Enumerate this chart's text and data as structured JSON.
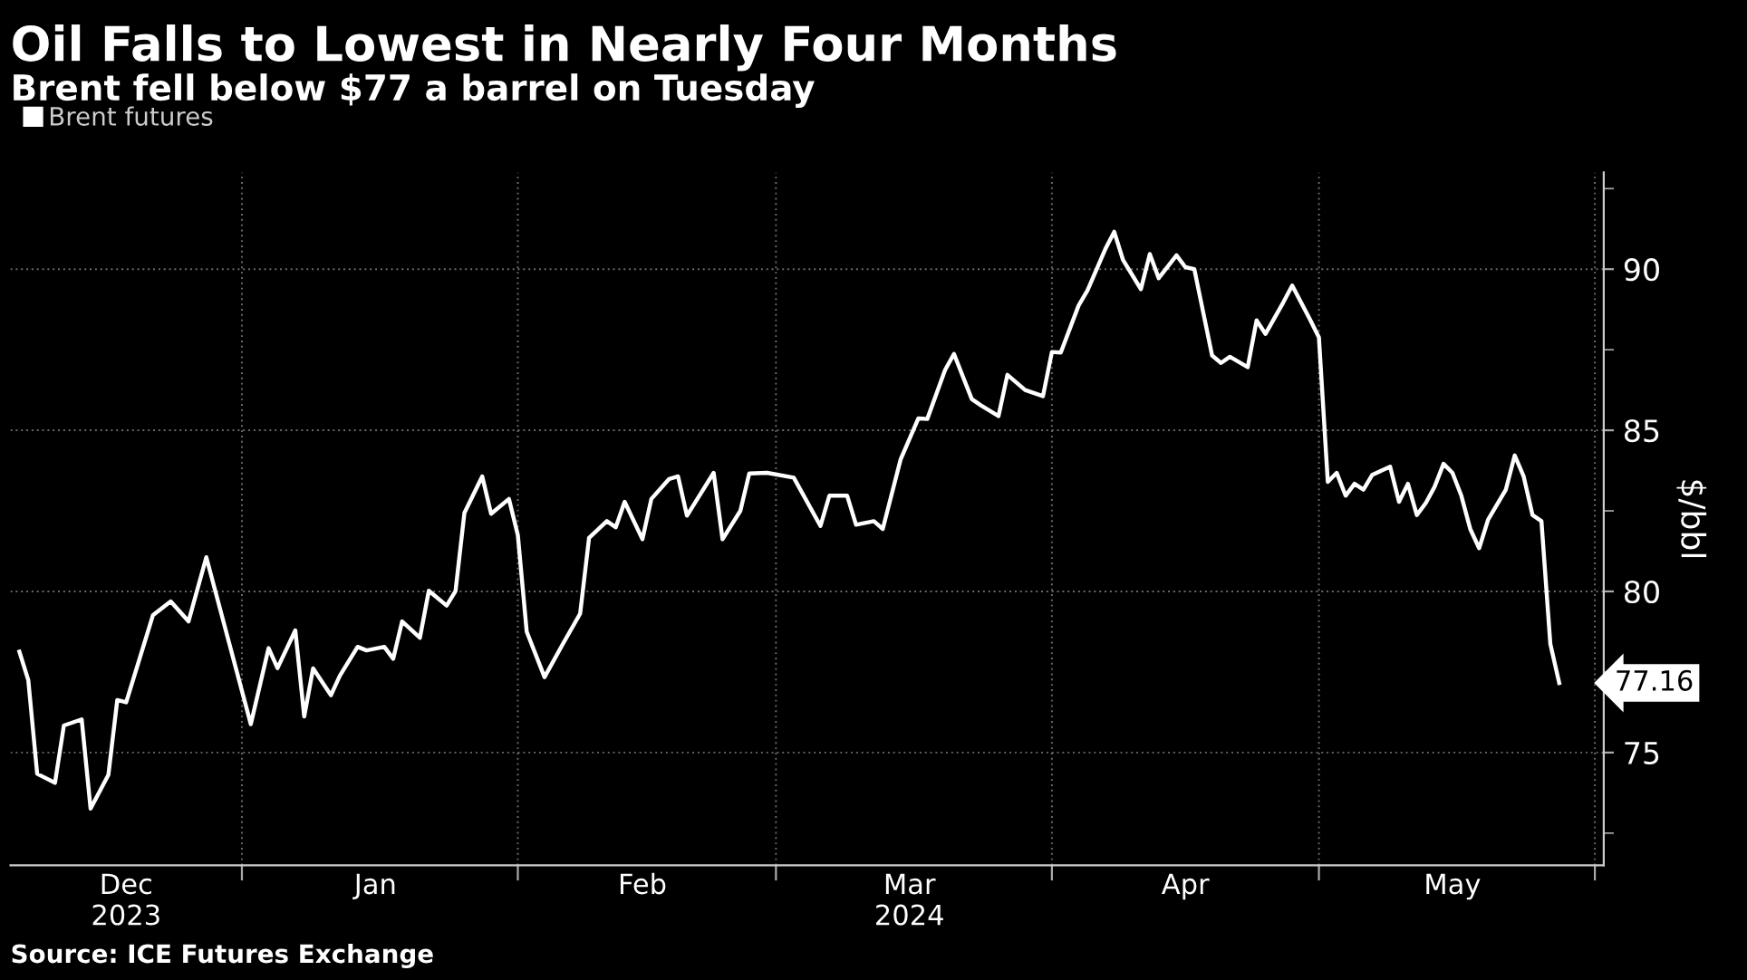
{
  "chart_data": {
    "type": "line",
    "title": "Oil Falls to Lowest in Nearly Four Months",
    "subtitle": "Brent fell below $77 a barrel on Tuesday",
    "ylabel": "$/bbl",
    "x": [
      "2023-12-07",
      "2023-12-08",
      "2023-12-09",
      "2023-12-11",
      "2023-12-12",
      "2023-12-14",
      "2023-12-15",
      "2023-12-17",
      "2023-12-18",
      "2023-12-19",
      "2023-12-22",
      "2023-12-24",
      "2023-12-26",
      "2023-12-28",
      "2024-01-02",
      "2024-01-04",
      "2024-01-05",
      "2024-01-07",
      "2024-01-08",
      "2024-01-09",
      "2024-01-11",
      "2024-01-12",
      "2024-01-14",
      "2024-01-15",
      "2024-01-17",
      "2024-01-18",
      "2024-01-19",
      "2024-01-21",
      "2024-01-22",
      "2024-01-24",
      "2024-01-25",
      "2024-01-26",
      "2024-01-28",
      "2024-01-29",
      "2024-01-31",
      "2024-02-01",
      "2024-02-02",
      "2024-02-04",
      "2024-02-06",
      "2024-02-08",
      "2024-02-09",
      "2024-02-11",
      "2024-02-12",
      "2024-02-13",
      "2024-02-15",
      "2024-02-16",
      "2024-02-18",
      "2024-02-19",
      "2024-02-20",
      "2024-02-23",
      "2024-02-24",
      "2024-02-26",
      "2024-02-27",
      "2024-02-29",
      "2024-03-03",
      "2024-03-06",
      "2024-03-07",
      "2024-03-09",
      "2024-03-10",
      "2024-03-12",
      "2024-03-13",
      "2024-03-15",
      "2024-03-17",
      "2024-03-18",
      "2024-03-20",
      "2024-03-21",
      "2024-03-23",
      "2024-03-24",
      "2024-03-26",
      "2024-03-27",
      "2024-03-29",
      "2024-03-31",
      "2024-04-01",
      "2024-04-02",
      "2024-04-04",
      "2024-04-05",
      "2024-04-07",
      "2024-04-08",
      "2024-04-09",
      "2024-04-11",
      "2024-04-12",
      "2024-04-13",
      "2024-04-15",
      "2024-04-16",
      "2024-04-17",
      "2024-04-19",
      "2024-04-20",
      "2024-04-21",
      "2024-04-23",
      "2024-04-24",
      "2024-04-25",
      "2024-04-27",
      "2024-04-28",
      "2024-04-30",
      "2024-05-01",
      "2024-05-02",
      "2024-05-03",
      "2024-05-04",
      "2024-05-05",
      "2024-05-06",
      "2024-05-07",
      "2024-05-09",
      "2024-05-10",
      "2024-05-11",
      "2024-05-12",
      "2024-05-13",
      "2024-05-14",
      "2024-05-15",
      "2024-05-16",
      "2024-05-17",
      "2024-05-18",
      "2024-05-19",
      "2024-05-20",
      "2024-05-22",
      "2024-05-23",
      "2024-05-24",
      "2024-05-25",
      "2024-05-26",
      "2024-05-27",
      "2024-05-28"
    ],
    "series": [
      {
        "name": "Brent futures",
        "color": "#ffffff",
        "values": [
          78.13,
          77.25,
          74.34,
          74.06,
          75.84,
          76.03,
          73.26,
          74.31,
          76.63,
          76.56,
          79.26,
          79.69,
          79.07,
          81.06,
          75.88,
          78.24,
          77.62,
          78.79,
          76.12,
          77.61,
          76.78,
          77.38,
          78.28,
          78.17,
          78.28,
          77.91,
          79.07,
          78.56,
          80.02,
          79.56,
          80.01,
          82.44,
          83.57,
          82.41,
          82.87,
          81.75,
          78.75,
          77.34,
          78.34,
          79.31,
          81.66,
          82.18,
          81.99,
          82.78,
          81.62,
          82.87,
          83.49,
          83.57,
          82.35,
          83.68,
          81.62,
          82.5,
          83.66,
          83.68,
          83.53,
          82.03,
          82.97,
          82.97,
          82.07,
          82.18,
          81.94,
          84.09,
          85.37,
          85.35,
          86.87,
          87.37,
          85.97,
          85.78,
          85.44,
          86.72,
          86.25,
          86.06,
          87.43,
          87.41,
          88.87,
          89.34,
          90.62,
          91.16,
          90.28,
          89.38,
          90.47,
          89.72,
          90.43,
          90.06,
          90.0,
          87.32,
          87.09,
          87.28,
          86.96,
          88.41,
          87.99,
          88.97,
          89.49,
          88.44,
          87.88,
          83.4,
          83.68,
          82.97,
          83.34,
          83.16,
          83.62,
          83.87,
          82.78,
          83.34,
          82.37,
          82.74,
          83.25,
          83.96,
          83.68,
          82.97,
          81.94,
          81.34,
          82.22,
          83.16,
          84.22,
          83.57,
          82.37,
          82.18,
          78.37,
          77.16
        ]
      }
    ],
    "xlim": [
      "2023-12-06",
      "2024-06-02"
    ],
    "xticks": [
      {
        "value": "2023-12-19",
        "label": "Dec\n2023"
      },
      {
        "value": "2024-01-01",
        "label": null
      },
      {
        "value": "2024-01-16",
        "label": "Jan"
      },
      {
        "value": "2024-02-01",
        "label": null
      },
      {
        "value": "2024-02-15",
        "label": "Feb"
      },
      {
        "value": "2024-03-01",
        "label": null
      },
      {
        "value": "2024-03-16",
        "label": "Mar\n2024"
      },
      {
        "value": "2024-04-01",
        "label": null
      },
      {
        "value": "2024-04-16",
        "label": "Apr"
      },
      {
        "value": "2024-05-01",
        "label": null
      },
      {
        "value": "2024-05-16",
        "label": "May"
      },
      {
        "value": "2024-06-01",
        "label": null
      }
    ],
    "ylim": [
      71.5,
      93
    ],
    "yticks": [
      {
        "value": 72.5,
        "label": null
      },
      75,
      {
        "value": 77.5,
        "label": null
      },
      80,
      {
        "value": 82.5,
        "label": null
      },
      85,
      {
        "value": 87.5,
        "label": null
      },
      90,
      {
        "value": 92.5,
        "label": null
      }
    ],
    "grid": true,
    "legend": "top left",
    "marker": "none",
    "line_style": "solid",
    "annotations": [
      {
        "text": "77.16",
        "x": "2024-05-28",
        "y": 77.16
      },
      "Source: ICE Futures Exchange"
    ]
  }
}
